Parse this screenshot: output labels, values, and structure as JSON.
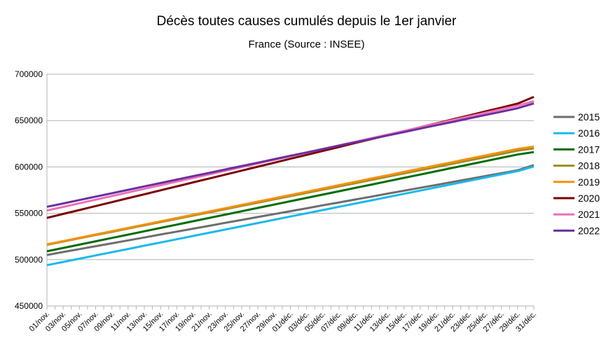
{
  "chart_data": {
    "type": "line",
    "title": "Décès toutes causes cumulés depuis le 1er janvier",
    "subtitle": "France  (Source : INSEE)",
    "ylim": [
      450000,
      700000
    ],
    "yticks": [
      450000,
      500000,
      550000,
      600000,
      650000,
      700000
    ],
    "ytick_labels": [
      "450000",
      "500000",
      "550000",
      "600000",
      "650000",
      "700000"
    ],
    "grid": "horizontal",
    "legend_position": "right",
    "categories": [
      "01/nov.",
      "03/nov.",
      "05/nov.",
      "07/nov.",
      "09/nov.",
      "11/nov.",
      "13/nov.",
      "15/nov.",
      "17/nov.",
      "19/nov.",
      "21/nov.",
      "23/nov.",
      "25/nov.",
      "27/nov.",
      "29/nov.",
      "01/déc.",
      "03/déc.",
      "05/déc.",
      "07/déc.",
      "09/déc.",
      "11/déc.",
      "13/déc.",
      "15/déc.",
      "17/déc.",
      "19/déc.",
      "21/déc.",
      "23/déc.",
      "25/déc.",
      "27/déc.",
      "29/déc.",
      "31/déc."
    ],
    "series": [
      {
        "name": "2015",
        "color": "#6d6d6d",
        "values": [
          505000,
          508200,
          511300,
          514500,
          517600,
          520800,
          523900,
          527100,
          530200,
          533400,
          536500,
          539700,
          542800,
          546000,
          549100,
          552300,
          555400,
          558600,
          561700,
          564900,
          568000,
          571200,
          574300,
          577500,
          580600,
          583800,
          586900,
          590100,
          593200,
          596400,
          602000
        ]
      },
      {
        "name": "2016",
        "color": "#1ab9ec",
        "values": [
          494000,
          497500,
          501000,
          504500,
          508000,
          511500,
          515000,
          518500,
          522000,
          525500,
          529000,
          532500,
          536000,
          539500,
          543000,
          546500,
          550000,
          553500,
          557000,
          560500,
          564000,
          567500,
          571000,
          574500,
          578000,
          581500,
          585000,
          588500,
          592000,
          595500,
          600500
        ]
      },
      {
        "name": "2017",
        "color": "#036b03",
        "values": [
          509000,
          512600,
          516200,
          519800,
          523400,
          527000,
          530600,
          534200,
          537800,
          541400,
          545000,
          548600,
          552200,
          555800,
          559400,
          563000,
          566600,
          570200,
          573800,
          577400,
          581000,
          584600,
          588200,
          591800,
          595400,
          599000,
          602600,
          606200,
          609800,
          613400,
          616000
        ]
      },
      {
        "name": "2018",
        "color": "#a08b1f",
        "values": [
          516000,
          519500,
          523000,
          526500,
          530000,
          533500,
          537000,
          540500,
          544000,
          547500,
          551000,
          554500,
          558000,
          561500,
          565000,
          568500,
          572000,
          575500,
          579000,
          582500,
          586000,
          589500,
          593000,
          596500,
          600000,
          603500,
          607000,
          610500,
          614000,
          617500,
          620000
        ]
      },
      {
        "name": "2019",
        "color": "#f39110",
        "values": [
          516500,
          520000,
          523600,
          527100,
          530700,
          534200,
          537800,
          541300,
          544900,
          548400,
          552000,
          555500,
          559100,
          562600,
          566200,
          569700,
          573300,
          576800,
          580400,
          583900,
          587500,
          591000,
          594600,
          598100,
          601700,
          605200,
          608800,
          612300,
          615900,
          619400,
          622000
        ]
      },
      {
        "name": "2020",
        "color": "#7b0000",
        "values": [
          545000,
          549300,
          553500,
          557800,
          562000,
          566300,
          570500,
          574800,
          579000,
          583300,
          587500,
          591800,
          596000,
          600300,
          604500,
          608800,
          613000,
          617300,
          621500,
          625800,
          630000,
          634300,
          638500,
          642800,
          647000,
          651300,
          655500,
          659800,
          664000,
          668300,
          675500
        ]
      },
      {
        "name": "2021",
        "color": "#ec70b8",
        "values": [
          553000,
          556900,
          560800,
          564700,
          568600,
          572500,
          576400,
          580300,
          584200,
          588100,
          592000,
          595900,
          599800,
          603700,
          607600,
          611500,
          615400,
          619300,
          623200,
          627100,
          631000,
          634900,
          638800,
          642700,
          646600,
          650500,
          654400,
          658300,
          662200,
          666100,
          671000
        ]
      },
      {
        "name": "2022",
        "color": "#6b2f9f",
        "values": [
          557000,
          560600,
          564300,
          568000,
          571600,
          575300,
          579000,
          582600,
          586300,
          590000,
          593600,
          597300,
          601000,
          604600,
          608300,
          612000,
          615600,
          619300,
          623000,
          626600,
          630300,
          634000,
          637600,
          641300,
          645000,
          648600,
          652300,
          656000,
          659600,
          663300,
          668500
        ]
      }
    ]
  }
}
